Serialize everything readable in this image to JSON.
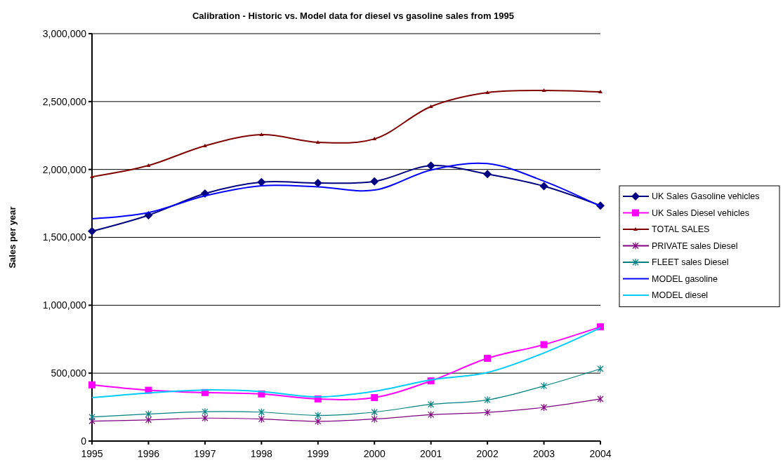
{
  "chart_data": {
    "type": "line",
    "title": "Calibration - Historic vs. Model data for diesel vs gasoline sales from 1995",
    "ylabel": "Sales per year",
    "x": [
      1995,
      1996,
      1997,
      1998,
      1999,
      2000,
      2001,
      2002,
      2003,
      2004
    ],
    "xlim": [
      1995,
      2004
    ],
    "xticks": [
      1995,
      1996,
      1997,
      1998,
      1999,
      2000,
      2001,
      2002,
      2003,
      2004
    ],
    "ylim": [
      0,
      3000000
    ],
    "yticks": [
      {
        "value": 0,
        "label": "0"
      },
      {
        "value": 500000,
        "label": "500,000"
      },
      {
        "value": 1000000,
        "label": "1,000,000"
      },
      {
        "value": 1500000,
        "label": "1,500,000"
      },
      {
        "value": 2000000,
        "label": "2,000,000"
      },
      {
        "value": 2500000,
        "label": "2,500,000"
      },
      {
        "value": 3000000,
        "label": "3,000,000"
      }
    ],
    "grid": "y",
    "legend": "right",
    "series": [
      {
        "name": "UK Sales Gasoline vehicles",
        "color": "#000080",
        "marker": "diamond",
        "values": [
          1545000,
          1663000,
          1823000,
          1907000,
          1900000,
          1912000,
          2028000,
          1966000,
          1877000,
          1734000
        ]
      },
      {
        "name": "UK Sales Diesel vehicles",
        "color": "#ff00ff",
        "marker": "square",
        "values": [
          414000,
          374000,
          357000,
          347000,
          310000,
          320000,
          443000,
          609000,
          710000,
          841000
        ]
      },
      {
        "name": "TOTAL SALES",
        "color": "#800000",
        "marker": "triangle",
        "values": [
          1946000,
          2029000,
          2174000,
          2256000,
          2200000,
          2225000,
          2463000,
          2566000,
          2582000,
          2571000
        ]
      },
      {
        "name": "PRIVATE sales Diesel",
        "color": "#800080",
        "marker": "cross",
        "values": [
          147000,
          156000,
          169000,
          162000,
          145000,
          162000,
          194000,
          211000,
          248000,
          310000
        ]
      },
      {
        "name": "FLEET sales Diesel",
        "color": "#008080",
        "marker": "cross",
        "values": [
          177000,
          199000,
          216000,
          213000,
          189000,
          213000,
          270000,
          303000,
          406000,
          532000
        ]
      },
      {
        "name": "MODEL gasoline",
        "color": "#0000ff",
        "marker": "none",
        "values": [
          1637000,
          1682000,
          1806000,
          1880000,
          1872000,
          1848000,
          1996000,
          2043000,
          1914000,
          1729000
        ]
      },
      {
        "name": "MODEL diesel",
        "color": "#00ccff",
        "marker": "none",
        "values": [
          320000,
          354000,
          376000,
          364000,
          325000,
          367000,
          451000,
          505000,
          649000,
          833000
        ]
      }
    ]
  }
}
